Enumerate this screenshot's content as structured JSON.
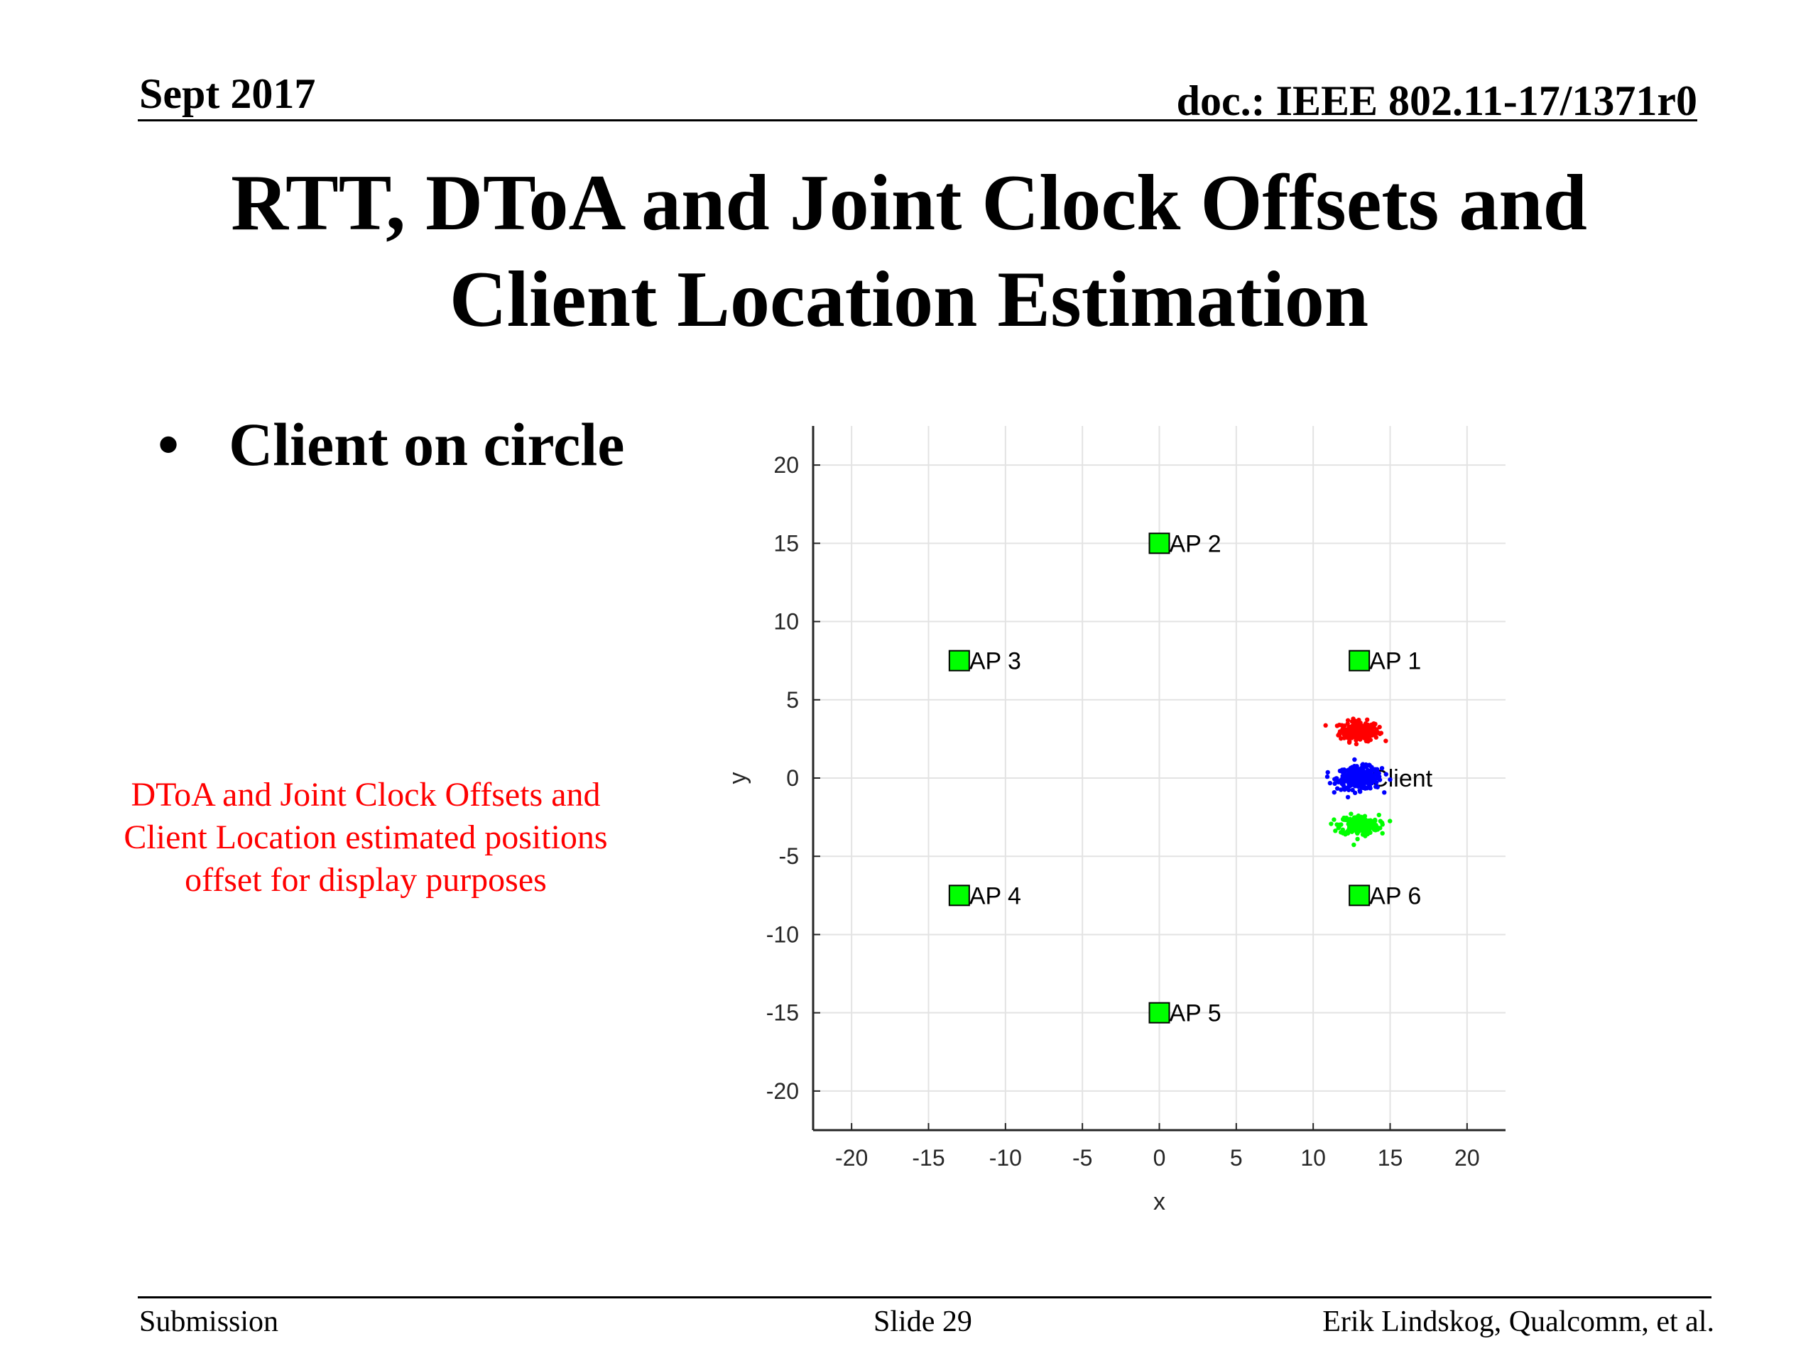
{
  "header": {
    "date": "Sept 2017",
    "doc": "doc.: IEEE 802.11-17/1371r0"
  },
  "title": {
    "line1": "RTT, DToA and Joint Clock Offsets and",
    "line2": "Client Location Estimation"
  },
  "bullet": {
    "marker": "•",
    "text": "Client on circle"
  },
  "note": {
    "line1": "DToA and Joint Clock Offsets and",
    "line2": "Client Location estimated positions",
    "line3": "offset for display purposes"
  },
  "footer": {
    "left": "Submission",
    "center": "Slide 29",
    "right": "Erik Lindskog, Qualcomm, et al."
  },
  "chart_data": {
    "type": "scatter",
    "xlabel": "x",
    "ylabel": "y",
    "xlim": [
      -22.5,
      22.5
    ],
    "ylim": [
      -22.5,
      22.5
    ],
    "xticks": [
      -20,
      -15,
      -10,
      -5,
      0,
      5,
      10,
      15,
      20
    ],
    "yticks": [
      20,
      15,
      10,
      5,
      0,
      -5,
      -10,
      -15,
      -20
    ],
    "grid": true,
    "access_points": [
      {
        "label": "AP 1",
        "x": 13,
        "y": 7.5
      },
      {
        "label": "AP 2",
        "x": 0,
        "y": 15
      },
      {
        "label": "AP 3",
        "x": -13,
        "y": 7.5
      },
      {
        "label": "AP 4",
        "x": -13,
        "y": -7.5
      },
      {
        "label": "AP 5",
        "x": 0,
        "y": -15
      },
      {
        "label": "AP 6",
        "x": 13,
        "y": -7.5
      }
    ],
    "client": {
      "label": "Client",
      "x": 13,
      "y": 0
    },
    "clusters": [
      {
        "color": "#ff0000",
        "center_x": 13,
        "center_y": 3,
        "spread": 0.7,
        "count": 220
      },
      {
        "color": "#0000ff",
        "center_x": 13,
        "center_y": 0,
        "spread": 0.8,
        "count": 300
      },
      {
        "color": "#00ff00",
        "center_x": 13,
        "center_y": -3,
        "spread": 0.7,
        "count": 220
      }
    ],
    "marker_color": "#00ff00"
  }
}
